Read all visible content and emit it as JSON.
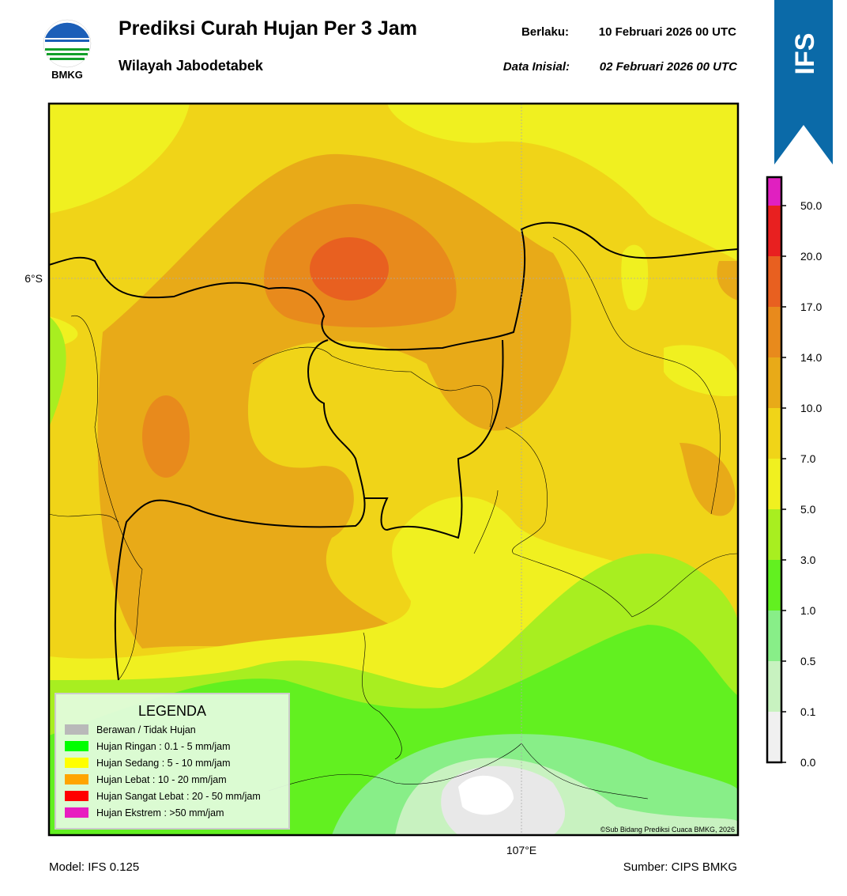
{
  "header": {
    "logo_text": "BMKG",
    "title": "Prediksi Curah Hujan Per 3 Jam",
    "subtitle": "Wilayah Jabodetabek",
    "valid_label": "Berlaku:",
    "valid_value": "10 Februari 2026 00 UTC",
    "init_label": "Data Inisial:",
    "init_value": "02 Februari 2026 00 UTC",
    "badge": "IFS"
  },
  "map": {
    "lat_label": "6°S",
    "lon_label": "107°E",
    "credit": "©Sub Bidang Prediksi Cuaca BMKG, 2026"
  },
  "legend": {
    "title": "LEGENDA",
    "items": [
      {
        "label": "Berawan / Tidak Hujan",
        "color": "#b9b9b9"
      },
      {
        "label": "Hujan Ringan : 0.1 - 5 mm/jam",
        "color": "#00ff00"
      },
      {
        "label": "Hujan Sedang : 5 - 10 mm/jam",
        "color": "#ffff00"
      },
      {
        "label": "Hujan Lebat : 10 - 20 mm/jam",
        "color": "#ffa500"
      },
      {
        "label": "Hujan Sangat Lebat : 20 - 50 mm/jam",
        "color": "#ff0000"
      },
      {
        "label": "Hujan Ekstrem : >50 mm/jam",
        "color": "#e81ec0"
      }
    ]
  },
  "colorbar": {
    "ticks": [
      {
        "value": 0,
        "label": "0.0"
      },
      {
        "value": 0.1,
        "label": "0.1"
      },
      {
        "value": 0.5,
        "label": "0.5"
      },
      {
        "value": 1,
        "label": "1.0"
      },
      {
        "value": 3,
        "label": "3.0"
      },
      {
        "value": 5,
        "label": "5.0"
      },
      {
        "value": 7,
        "label": "7.0"
      },
      {
        "value": 10,
        "label": "10.0"
      },
      {
        "value": 14,
        "label": "14.0"
      },
      {
        "value": 17,
        "label": "17.0"
      },
      {
        "value": 20,
        "label": "20.0"
      },
      {
        "value": 50,
        "label": "50.0"
      }
    ],
    "colors": [
      "#f0f0f0",
      "#c8f2c0",
      "#88ee88",
      "#62f020",
      "#a8ee20",
      "#f0f020",
      "#f0d418",
      "#e8aa18",
      "#e88a1c",
      "#e86020",
      "#e82020",
      "#e020c0"
    ]
  },
  "footer": {
    "model": "Model: IFS 0.125",
    "source": "Sumber: CIPS BMKG"
  }
}
